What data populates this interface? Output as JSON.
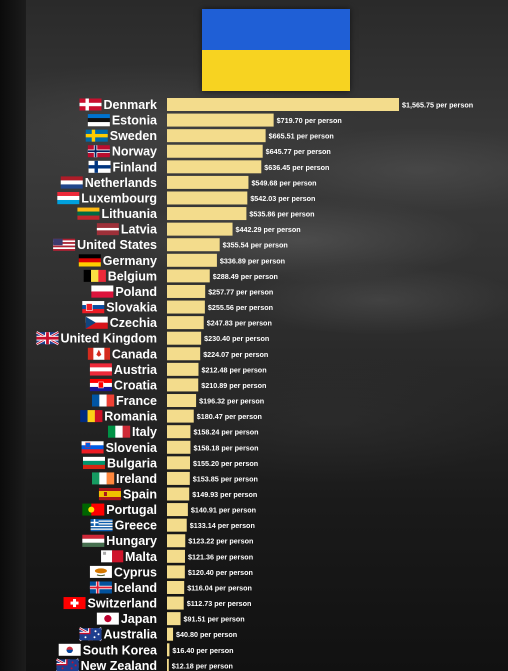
{
  "colors": {
    "bar": "#f3dc8c",
    "label": "#ffffff",
    "value": "#ffffff",
    "ukraine_blue": "#1f5fd6",
    "ukraine_yellow": "#f7d321"
  },
  "banner": {
    "icon": "ukraine-flag-icon"
  },
  "chart_data": {
    "type": "bar",
    "orientation": "horizontal",
    "value_suffix": " per person",
    "categories": [
      "Denmark",
      "Estonia",
      "Sweden",
      "Norway",
      "Finland",
      "Netherlands",
      "Luxembourg",
      "Lithuania",
      "Latvia",
      "United States",
      "Germany",
      "Belgium",
      "Poland",
      "Slovakia",
      "Czechia",
      "United Kingdom",
      "Canada",
      "Austria",
      "Croatia",
      "France",
      "Romania",
      "Italy",
      "Slovenia",
      "Bulgaria",
      "Ireland",
      "Spain",
      "Portugal",
      "Greece",
      "Hungary",
      "Malta",
      "Cyprus",
      "Iceland",
      "Switzerland",
      "Japan",
      "Australia",
      "South Korea",
      "New Zealand"
    ],
    "values": [
      1565.75,
      719.7,
      665.51,
      645.77,
      636.45,
      549.68,
      542.03,
      535.86,
      442.29,
      355.54,
      336.89,
      288.49,
      257.77,
      255.56,
      247.83,
      230.4,
      224.07,
      212.48,
      210.89,
      196.32,
      180.47,
      158.24,
      158.18,
      155.2,
      153.85,
      149.93,
      140.91,
      133.14,
      123.22,
      121.36,
      120.4,
      116.04,
      112.73,
      91.51,
      40.8,
      16.4,
      12.18
    ],
    "value_labels": [
      "$1,565.75 per person",
      "$719.70 per person",
      "$665.51 per person",
      "$645.77 per person",
      "$636.45 per person",
      "$549.68 per person",
      "$542.03 per person",
      "$535.86 per person",
      "$442.29 per person",
      "$355.54 per person",
      "$336.89 per person",
      "$288.49 per person",
      "$257.77 per person",
      "$255.56 per person",
      "$247.83 per person",
      "$230.40 per person",
      "$224.07 per person",
      "$212.48 per person",
      "$210.89 per person",
      "$196.32 per person",
      "$180.47 per person",
      "$158.24 per person",
      "$158.18 per person",
      "$155.20 per person",
      "$153.85 per person",
      "$149.93 per person",
      "$140.91 per person",
      "$133.14 per person",
      "$123.22 per person",
      "$121.36 per person",
      "$120.40 per person",
      "$116.04 per person",
      "$112.73 per person",
      "$91.51 per person",
      "$40.80 per person",
      "$16.40 per person",
      "$12.18 per person"
    ],
    "flag_icons": [
      "denmark-flag-icon",
      "estonia-flag-icon",
      "sweden-flag-icon",
      "norway-flag-icon",
      "finland-flag-icon",
      "netherlands-flag-icon",
      "luxembourg-flag-icon",
      "lithuania-flag-icon",
      "latvia-flag-icon",
      "united-states-flag-icon",
      "germany-flag-icon",
      "belgium-flag-icon",
      "poland-flag-icon",
      "slovakia-flag-icon",
      "czechia-flag-icon",
      "united-kingdom-flag-icon",
      "canada-flag-icon",
      "austria-flag-icon",
      "croatia-flag-icon",
      "france-flag-icon",
      "romania-flag-icon",
      "italy-flag-icon",
      "slovenia-flag-icon",
      "bulgaria-flag-icon",
      "ireland-flag-icon",
      "spain-flag-icon",
      "portugal-flag-icon",
      "greece-flag-icon",
      "hungary-flag-icon",
      "malta-flag-icon",
      "cyprus-flag-icon",
      "iceland-flag-icon",
      "switzerland-flag-icon",
      "japan-flag-icon",
      "australia-flag-icon",
      "south-korea-flag-icon",
      "new-zealand-flag-icon"
    ],
    "xlim": [
      0,
      1565.75
    ],
    "grid": false,
    "legend": "none"
  }
}
